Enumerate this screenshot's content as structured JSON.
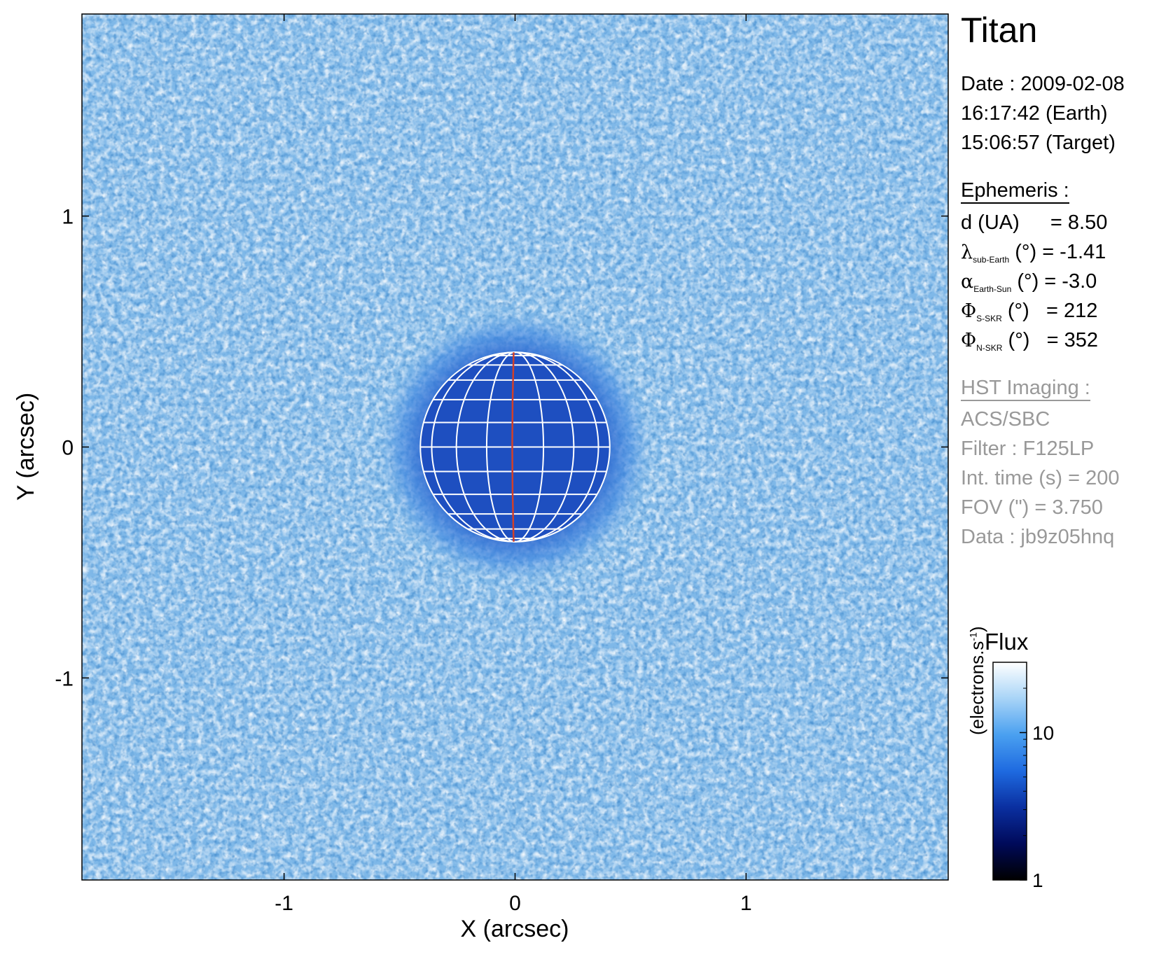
{
  "chart_data": {
    "type": "heatmap",
    "xlabel": "X (arcsec)",
    "ylabel": "Y (arcsec)",
    "xlim": [
      -1.875,
      1.875
    ],
    "ylim": [
      -1.875,
      1.875
    ],
    "xticks": [
      -1,
      0,
      1
    ],
    "yticks": [
      -1,
      0,
      1
    ],
    "xtick_labels": [
      "-1",
      "0",
      "1"
    ],
    "ytick_labels": [
      "-1",
      "0",
      "1"
    ],
    "disk_center": [
      0,
      0
    ],
    "disk_radius_arcsec": 0.41,
    "central_meridian_color": "#d0402a",
    "grid_color": "#ffffff",
    "background_color": "#7fb8e8",
    "disk_color": "#1e4fc0",
    "colorbar": {
      "title": "Flux",
      "label": "(electrons.s",
      "label_sup": "-1",
      "label_end": ")",
      "scale": "log",
      "range": [
        1,
        30
      ],
      "ticks": [
        10,
        1
      ],
      "tick_labels": [
        "10",
        "1"
      ],
      "colors": [
        "#000000",
        "#000a5a",
        "#0a2fa0",
        "#1e6ae0",
        "#4aa0f0",
        "#a8d4f7",
        "#ffffff"
      ]
    }
  },
  "panel": {
    "target": "Titan",
    "date": "Date : 2009-02-08",
    "earth_time": "16:17:42 (Earth)",
    "target_time": "15:06:57 (Target)",
    "ephemeris_header": "Ephemeris :",
    "d_label": "d (UA)",
    "d_value": "= 8.50",
    "lambda_sym": "λ",
    "lambda_sub": "sub-Earth",
    "lambda_rest": "(°) = -1.41",
    "alpha_sym": "α",
    "alpha_sub": "Earth-Sun",
    "alpha_rest": "(°) = -3.0",
    "phi_sym": "Φ",
    "phi_s_sub": "S-SKR",
    "phi_s_rest": "(°)   = 212",
    "phi_n_sub": "N-SKR",
    "phi_n_rest": "(°)   = 352",
    "hst_header": "HST Imaging :",
    "instrument": "ACS/SBC",
    "filter": "Filter : F125LP",
    "int_time": "Int. time (s) = 200",
    "fov": "FOV (\") = 3.750",
    "data_id": "Data : jb9z05hnq"
  }
}
